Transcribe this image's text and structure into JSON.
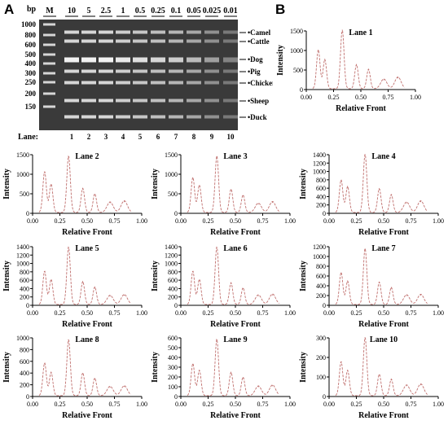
{
  "panel_a": {
    "letter": "A",
    "unit_label": "bp",
    "lane_caption": "Lane:",
    "concentrations": [
      "M",
      "10",
      "5",
      "2.5",
      "1",
      "0.5",
      "0.25",
      "0.1",
      "0.05",
      "0.025",
      "0.01"
    ],
    "lane_numbers": [
      "1",
      "2",
      "3",
      "4",
      "5",
      "6",
      "7",
      "8",
      "9",
      "10"
    ],
    "marker_labels": [
      "1000",
      "800",
      "600",
      "500",
      "400",
      "300",
      "250",
      "200",
      "150"
    ],
    "species_labels": [
      "Camel",
      "Cattle",
      "Dog",
      "Pig",
      "Chicken",
      "Sheep",
      "Duck"
    ],
    "colors": {
      "gel_background": "#3a3a3a",
      "band": "#f2f2f2"
    }
  },
  "panel_b": {
    "letter": "B"
  },
  "chart_data": [
    {
      "type": "line",
      "title": "Lane 1",
      "xlabel": "Relative Front",
      "ylabel": "Intensity",
      "xlim": [
        0.0,
        1.0
      ],
      "ylim": [
        0,
        1500
      ],
      "xticks": [
        "0.00",
        "0.25",
        "0.50",
        "0.75",
        "1.00"
      ],
      "yticks": [
        "0",
        "500",
        "1000",
        "1500"
      ],
      "peaks": [
        {
          "x": 0.11,
          "y": 1000
        },
        {
          "x": 0.17,
          "y": 750
        },
        {
          "x": 0.33,
          "y": 1520
        },
        {
          "x": 0.46,
          "y": 620
        },
        {
          "x": 0.57,
          "y": 500
        },
        {
          "x": 0.71,
          "y": 250
        },
        {
          "x": 0.84,
          "y": 300
        }
      ]
    },
    {
      "type": "line",
      "title": "Lane 2",
      "xlabel": "Relative Front",
      "ylabel": "Intensity",
      "xlim": [
        0.0,
        1.0
      ],
      "ylim": [
        0,
        1500
      ],
      "xticks": [
        "0.00",
        "0.25",
        "0.50",
        "0.75",
        "1.00"
      ],
      "yticks": [
        "0",
        "500",
        "1000",
        "1500"
      ],
      "peaks": [
        {
          "x": 0.11,
          "y": 1050
        },
        {
          "x": 0.17,
          "y": 730
        },
        {
          "x": 0.33,
          "y": 1450
        },
        {
          "x": 0.46,
          "y": 620
        },
        {
          "x": 0.57,
          "y": 480
        },
        {
          "x": 0.71,
          "y": 270
        },
        {
          "x": 0.84,
          "y": 300
        }
      ]
    },
    {
      "type": "line",
      "title": "Lane 3",
      "xlabel": "Relative Front",
      "ylabel": "Intensity",
      "xlim": [
        0.0,
        1.0
      ],
      "ylim": [
        0,
        1500
      ],
      "xticks": [
        "0.00",
        "0.25",
        "0.50",
        "0.75",
        "1.00"
      ],
      "yticks": [
        "0",
        "500",
        "1000",
        "1500"
      ],
      "peaks": [
        {
          "x": 0.11,
          "y": 900
        },
        {
          "x": 0.17,
          "y": 700
        },
        {
          "x": 0.33,
          "y": 1450
        },
        {
          "x": 0.46,
          "y": 600
        },
        {
          "x": 0.57,
          "y": 450
        },
        {
          "x": 0.71,
          "y": 240
        },
        {
          "x": 0.84,
          "y": 280
        }
      ]
    },
    {
      "type": "line",
      "title": "Lane 4",
      "xlabel": "Relative Front",
      "ylabel": "Intensity",
      "xlim": [
        0.0,
        1.0
      ],
      "ylim": [
        0,
        1400
      ],
      "xticks": [
        "0.00",
        "0.25",
        "0.50",
        "0.75",
        "1.00"
      ],
      "yticks": [
        "0",
        "200",
        "400",
        "600",
        "800",
        "1000",
        "1200",
        "1400"
      ],
      "peaks": [
        {
          "x": 0.11,
          "y": 780
        },
        {
          "x": 0.17,
          "y": 620
        },
        {
          "x": 0.33,
          "y": 1400
        },
        {
          "x": 0.46,
          "y": 570
        },
        {
          "x": 0.57,
          "y": 430
        },
        {
          "x": 0.71,
          "y": 250
        },
        {
          "x": 0.84,
          "y": 280
        }
      ]
    },
    {
      "type": "line",
      "title": "Lane 5",
      "xlabel": "Relative Front",
      "ylabel": "Intensity",
      "xlim": [
        0.0,
        1.0
      ],
      "ylim": [
        0,
        1400
      ],
      "xticks": [
        "0.00",
        "0.25",
        "0.50",
        "0.75",
        "1.00"
      ],
      "yticks": [
        "0",
        "200",
        "400",
        "600",
        "800",
        "1000",
        "1200",
        "1400"
      ],
      "peaks": [
        {
          "x": 0.11,
          "y": 800
        },
        {
          "x": 0.17,
          "y": 600
        },
        {
          "x": 0.33,
          "y": 1380
        },
        {
          "x": 0.46,
          "y": 550
        },
        {
          "x": 0.57,
          "y": 420
        },
        {
          "x": 0.71,
          "y": 220
        },
        {
          "x": 0.84,
          "y": 240
        }
      ]
    },
    {
      "type": "line",
      "title": "Lane 6",
      "xlabel": "Relative Front",
      "ylabel": "Intensity",
      "xlim": [
        0.0,
        1.0
      ],
      "ylim": [
        0,
        1400
      ],
      "xticks": [
        "0.00",
        "0.25",
        "0.50",
        "0.75",
        "1.00"
      ],
      "yticks": [
        "0",
        "200",
        "400",
        "600",
        "800",
        "1000",
        "1200",
        "1400"
      ],
      "peaks": [
        {
          "x": 0.11,
          "y": 800
        },
        {
          "x": 0.17,
          "y": 600
        },
        {
          "x": 0.33,
          "y": 1380
        },
        {
          "x": 0.46,
          "y": 520
        },
        {
          "x": 0.57,
          "y": 400
        },
        {
          "x": 0.71,
          "y": 230
        },
        {
          "x": 0.84,
          "y": 250
        }
      ]
    },
    {
      "type": "line",
      "title": "Lane 7",
      "xlabel": "Relative Front",
      "ylabel": "Intensity",
      "xlim": [
        0.0,
        1.0
      ],
      "ylim": [
        0,
        1200
      ],
      "xticks": [
        "0.00",
        "0.25",
        "0.50",
        "0.75",
        "1.00"
      ],
      "yticks": [
        "0",
        "200",
        "400",
        "600",
        "800",
        "1000",
        "1200"
      ],
      "peaks": [
        {
          "x": 0.11,
          "y": 660
        },
        {
          "x": 0.17,
          "y": 480
        },
        {
          "x": 0.33,
          "y": 1150
        },
        {
          "x": 0.46,
          "y": 460
        },
        {
          "x": 0.57,
          "y": 350
        },
        {
          "x": 0.71,
          "y": 200
        },
        {
          "x": 0.84,
          "y": 210
        }
      ]
    },
    {
      "type": "line",
      "title": "Lane 8",
      "xlabel": "Relative Front",
      "ylabel": "Intensity",
      "xlim": [
        0.0,
        1.0
      ],
      "ylim": [
        0,
        1000
      ],
      "xticks": [
        "0.00",
        "0.25",
        "0.50",
        "0.75",
        "1.00"
      ],
      "yticks": [
        "0",
        "200",
        "400",
        "600",
        "800",
        "1000"
      ],
      "peaks": [
        {
          "x": 0.11,
          "y": 560
        },
        {
          "x": 0.17,
          "y": 400
        },
        {
          "x": 0.33,
          "y": 960
        },
        {
          "x": 0.46,
          "y": 390
        },
        {
          "x": 0.57,
          "y": 300
        },
        {
          "x": 0.71,
          "y": 160
        },
        {
          "x": 0.84,
          "y": 170
        }
      ]
    },
    {
      "type": "line",
      "title": "Lane 9",
      "xlabel": "Relative Front",
      "ylabel": "Intensity",
      "xlim": [
        0.0,
        1.0
      ],
      "ylim": [
        0,
        600
      ],
      "xticks": [
        "0.00",
        "0.25",
        "0.50",
        "0.75",
        "1.00"
      ],
      "yticks": [
        "0",
        "100",
        "200",
        "300",
        "400",
        "500",
        "600"
      ],
      "peaks": [
        {
          "x": 0.11,
          "y": 330
        },
        {
          "x": 0.17,
          "y": 260
        },
        {
          "x": 0.33,
          "y": 580
        },
        {
          "x": 0.46,
          "y": 240
        },
        {
          "x": 0.57,
          "y": 190
        },
        {
          "x": 0.71,
          "y": 100
        },
        {
          "x": 0.84,
          "y": 110
        }
      ]
    },
    {
      "type": "line",
      "title": "Lane 10",
      "xlabel": "Relative Front",
      "ylabel": "Intensity",
      "xlim": [
        0.0,
        1.0
      ],
      "ylim": [
        0,
        300
      ],
      "xticks": [
        "0.00",
        "0.25",
        "0.50",
        "0.75",
        "1.00"
      ],
      "yticks": [
        "0",
        "100",
        "200",
        "300"
      ],
      "peaks": [
        {
          "x": 0.11,
          "y": 175
        },
        {
          "x": 0.17,
          "y": 130
        },
        {
          "x": 0.33,
          "y": 300
        },
        {
          "x": 0.46,
          "y": 110
        },
        {
          "x": 0.57,
          "y": 85
        },
        {
          "x": 0.71,
          "y": 55
        },
        {
          "x": 0.84,
          "y": 60
        }
      ]
    }
  ]
}
